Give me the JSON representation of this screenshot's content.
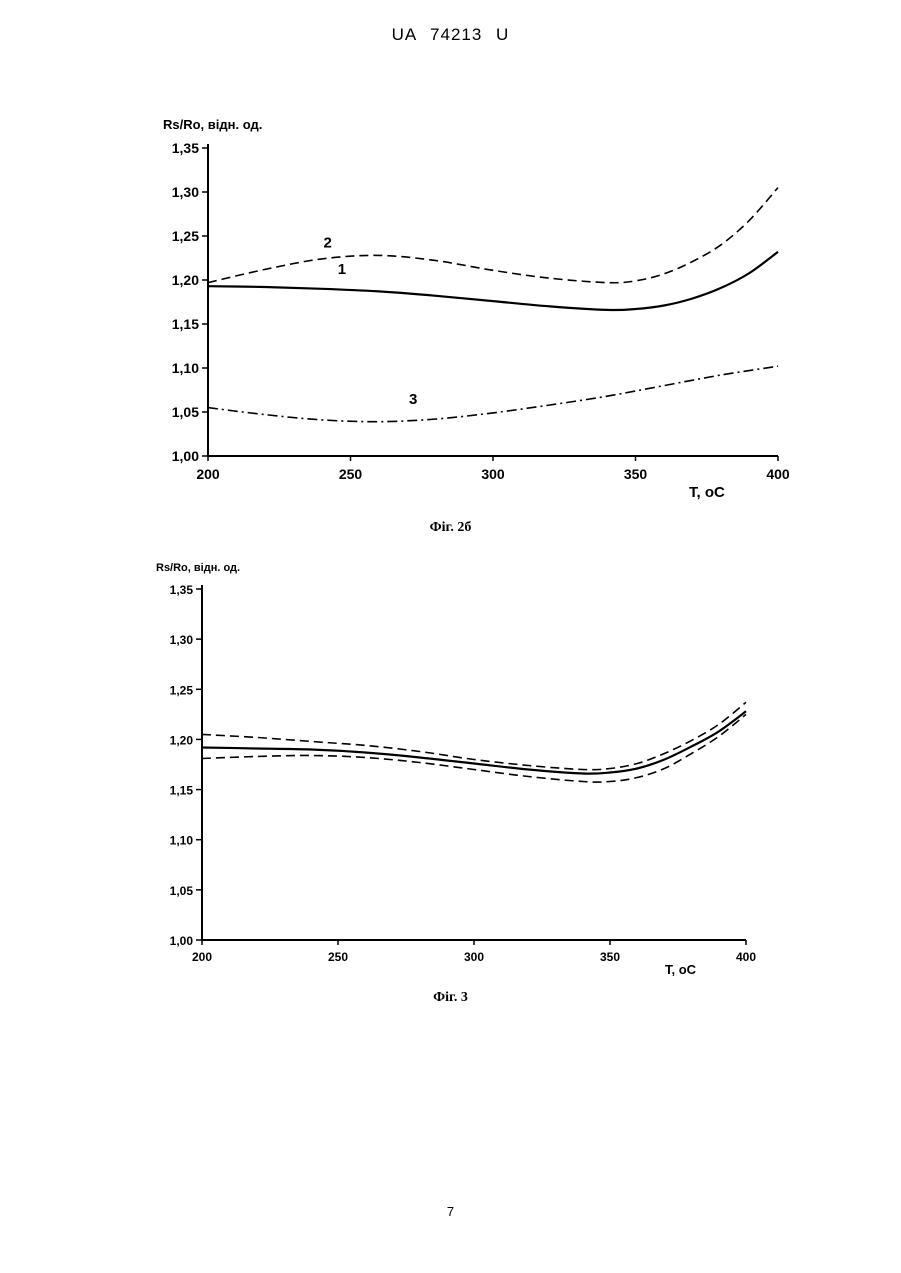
{
  "header": {
    "text": "UA  74213  U"
  },
  "page_number": "7",
  "chart_data": [
    {
      "type": "line",
      "caption": "Фіг. 2б",
      "ylabel": "Rs/Ro,  відн. од.",
      "xlabel": "T,  oC",
      "x_ticks": [
        "200",
        "250",
        "300",
        "350",
        "400"
      ],
      "y_ticks": [
        "1,00",
        "1,05",
        "1,10",
        "1,15",
        "1,20",
        "1,25",
        "1,30",
        "1,35"
      ],
      "xlim": [
        200,
        400
      ],
      "ylim": [
        1.0,
        1.35
      ],
      "grid": false,
      "series": [
        {
          "name": "1",
          "style": "solid",
          "x": [
            200,
            220,
            240,
            260,
            280,
            300,
            320,
            340,
            350,
            360,
            370,
            380,
            390,
            400
          ],
          "y": [
            1.193,
            1.192,
            1.19,
            1.187,
            1.182,
            1.176,
            1.17,
            1.166,
            1.167,
            1.171,
            1.179,
            1.191,
            1.208,
            1.232
          ]
        },
        {
          "name": "2",
          "style": "dashed",
          "x": [
            200,
            220,
            240,
            260,
            280,
            300,
            320,
            340,
            350,
            360,
            370,
            380,
            390,
            400
          ],
          "y": [
            1.197,
            1.212,
            1.224,
            1.228,
            1.222,
            1.211,
            1.202,
            1.197,
            1.199,
            1.207,
            1.221,
            1.24,
            1.268,
            1.305
          ]
        },
        {
          "name": "3",
          "style": "dashdot",
          "x": [
            200,
            220,
            240,
            260,
            280,
            300,
            320,
            340,
            360,
            380,
            400
          ],
          "y": [
            1.055,
            1.047,
            1.041,
            1.039,
            1.042,
            1.049,
            1.058,
            1.068,
            1.08,
            1.092,
            1.102
          ]
        }
      ],
      "annotations": [
        {
          "text": "1",
          "x": 247,
          "y": 1.207
        },
        {
          "text": "2",
          "x": 242,
          "y": 1.237
        },
        {
          "text": "3",
          "x": 272,
          "y": 1.059
        }
      ]
    },
    {
      "type": "line",
      "caption": "Фіг. 3",
      "ylabel": "Rs/Ro, відн. од.",
      "xlabel": "T,  oC",
      "x_ticks": [
        "200",
        "250",
        "300",
        "350",
        "400"
      ],
      "y_ticks": [
        "1,00",
        "1,05",
        "1,10",
        "1,15",
        "1,20",
        "1,25",
        "1,30",
        "1,35"
      ],
      "xlim": [
        200,
        400
      ],
      "ylim": [
        1.0,
        1.35
      ],
      "grid": false,
      "series": [
        {
          "style": "solid",
          "x": [
            200,
            220,
            240,
            260,
            280,
            300,
            320,
            340,
            350,
            360,
            370,
            380,
            390,
            400
          ],
          "y": [
            1.192,
            1.191,
            1.19,
            1.187,
            1.182,
            1.176,
            1.17,
            1.166,
            1.167,
            1.171,
            1.18,
            1.193,
            1.208,
            1.228
          ]
        },
        {
          "style": "dashed",
          "x": [
            200,
            220,
            240,
            260,
            280,
            300,
            320,
            340,
            350,
            360,
            370,
            380,
            390,
            400
          ],
          "y": [
            1.205,
            1.202,
            1.198,
            1.194,
            1.188,
            1.18,
            1.174,
            1.17,
            1.171,
            1.176,
            1.186,
            1.199,
            1.215,
            1.237
          ]
        },
        {
          "style": "dashed",
          "x": [
            200,
            220,
            240,
            260,
            280,
            300,
            320,
            340,
            350,
            360,
            370,
            380,
            390,
            400
          ],
          "y": [
            1.181,
            1.183,
            1.184,
            1.182,
            1.177,
            1.17,
            1.163,
            1.158,
            1.158,
            1.162,
            1.171,
            1.186,
            1.203,
            1.225
          ]
        }
      ]
    }
  ]
}
